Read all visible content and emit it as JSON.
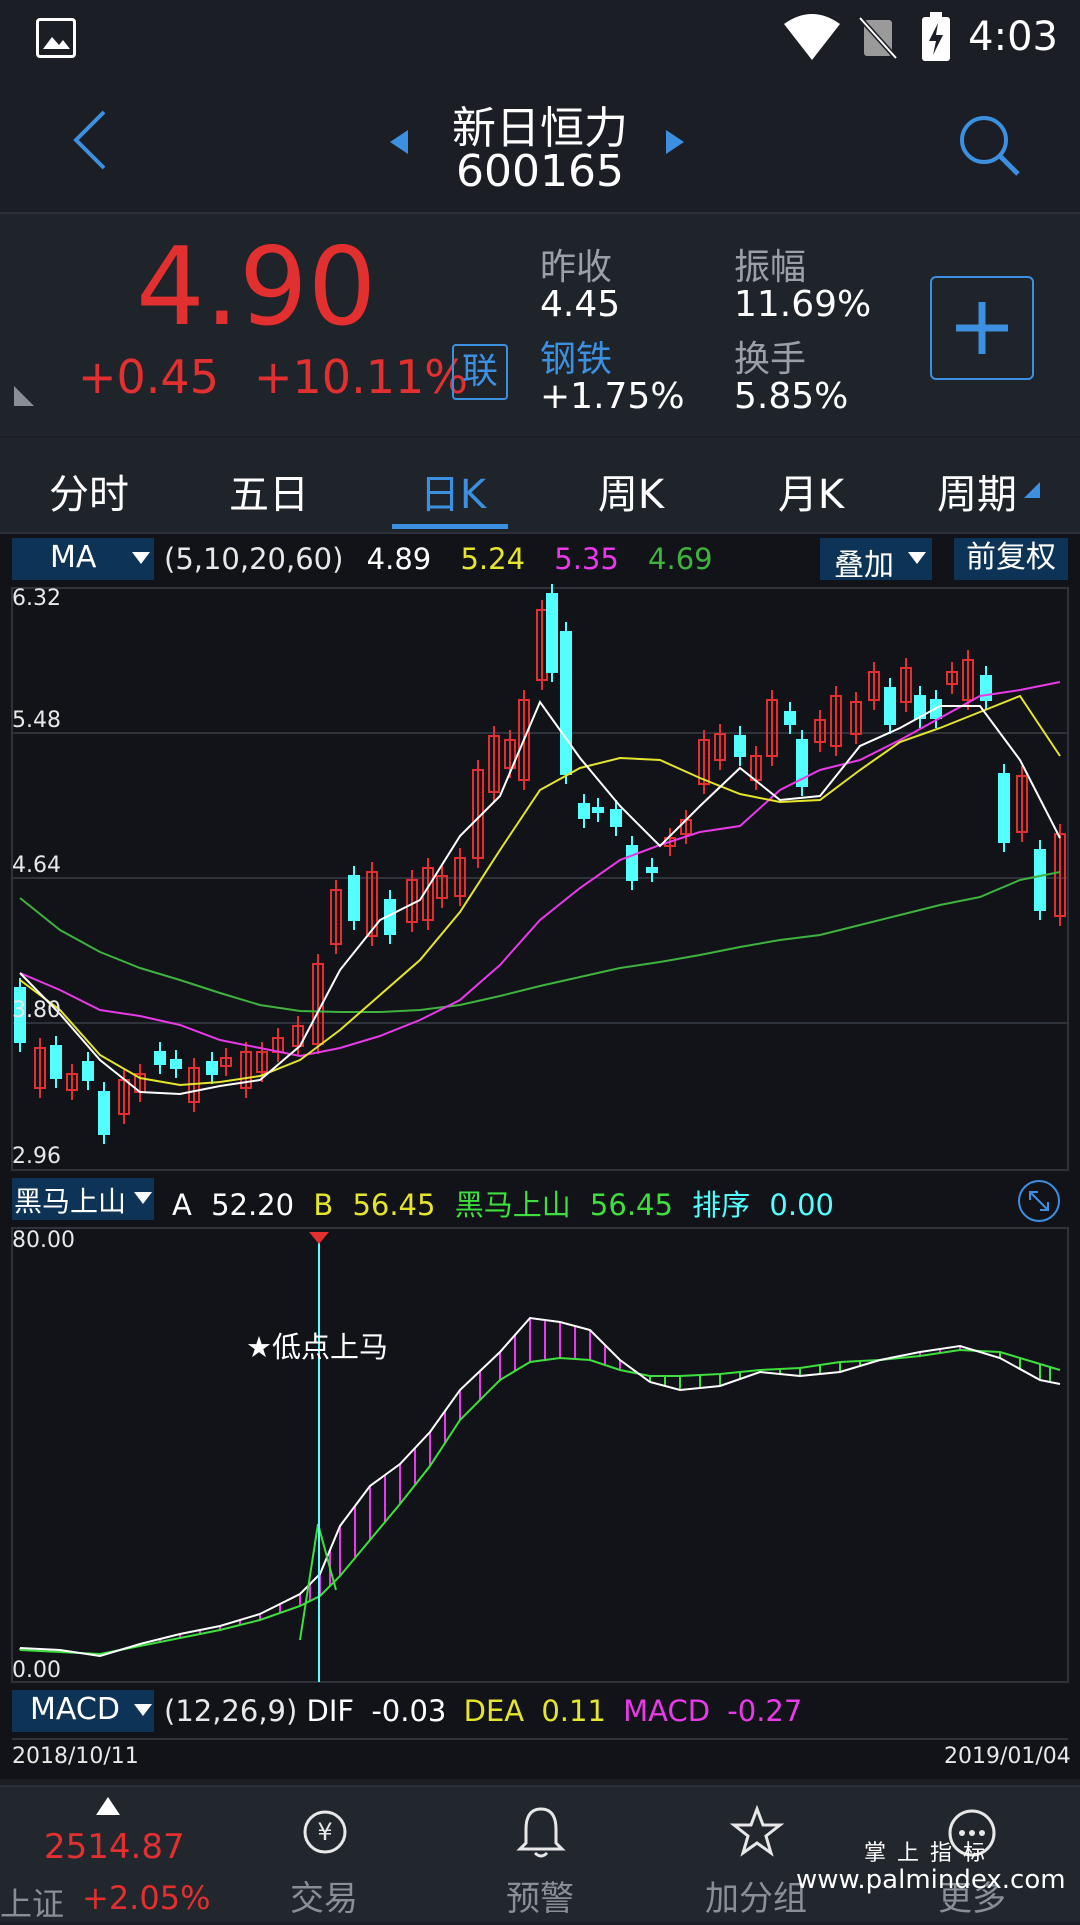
{
  "status": {
    "time": "4:03"
  },
  "header": {
    "name": "新日恒力",
    "code": "600165"
  },
  "quote": {
    "price": "4.90",
    "change": "+0.45",
    "change_pct": "+10.11%",
    "lian": "联",
    "prev_close_label": "昨收",
    "prev_close": "4.45",
    "sector": "钢铁",
    "sector_change": "+1.75%",
    "amplitude_label": "振幅",
    "amplitude": "11.69%",
    "turnover_label": "换手",
    "turnover": "5.85%"
  },
  "tabs": [
    "分时",
    "五日",
    "日K",
    "周K",
    "月K",
    "周期"
  ],
  "active_tab": "日K",
  "ma_bar": {
    "selector": "MA",
    "params": "(5,10,20,60)",
    "ma5": "4.89",
    "ma10": "5.24",
    "ma20": "5.35",
    "ma60": "4.69",
    "overlay": "叠加",
    "adjust": "前复权"
  },
  "price_axis": [
    "6.32",
    "5.48",
    "4.64",
    "3.80",
    "2.96"
  ],
  "indicator_bar": {
    "selector": "黑马上山",
    "a_label": "A",
    "a_value": "52.20",
    "b_label": "B",
    "b_value": "56.45",
    "c_label": "黑马上山",
    "c_value": "56.45",
    "rank_label": "排序",
    "rank_value": "0.00"
  },
  "indicator_axis": {
    "top": "80.00",
    "bottom": "0.00"
  },
  "signal_label": "★低点上马",
  "macd_bar": {
    "selector": "MACD",
    "params": "(12,26,9)",
    "dif_label": "DIF",
    "dif": "-0.03",
    "dea_label": "DEA",
    "dea": "0.11",
    "macd_label": "MACD",
    "macd": "-0.27"
  },
  "dates": {
    "start": "2018/10/11",
    "end": "2019/01/04"
  },
  "nav": {
    "index_value": "2514.87",
    "index_name": "上证",
    "index_change": "+2.05%",
    "trade": "交易",
    "alert": "预警",
    "add_group": "加分组",
    "more": "更多"
  },
  "watermark": {
    "line1": "掌 上 指 标",
    "line2": "www.palmindex.com"
  },
  "colors": {
    "up": "#e23030",
    "down": "#54ffff",
    "ma5": "#ffffff",
    "ma10": "#e5e52e",
    "ma20": "#e83ae8",
    "ma60": "#3fb23f",
    "accent": "#3d8fe0"
  }
}
